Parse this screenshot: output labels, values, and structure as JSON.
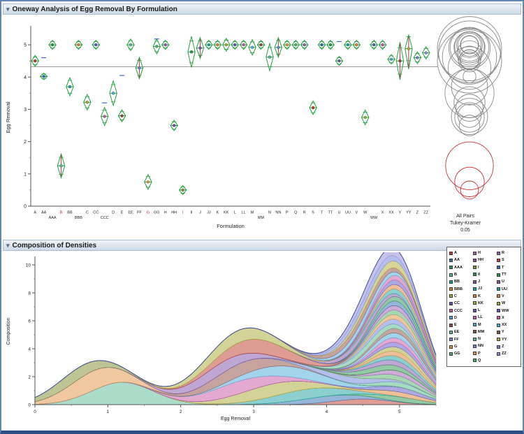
{
  "palette": [
    "#c0392b",
    "#2e6db4",
    "#27934b",
    "#7d4fa6",
    "#17a2a0",
    "#d98032",
    "#a8a832",
    "#5b52c7",
    "#c9539e",
    "#45a9d9",
    "#8c4a3f",
    "#52b788",
    "#6c7fd8",
    "#e0913f",
    "#4fae6b",
    "#9b59b6"
  ],
  "panels": {
    "oneway": {
      "header": "Oneway Analysis of Egg Removal By Formulation"
    },
    "density": {
      "header": "Composition of Densities"
    }
  },
  "chart_data": [
    {
      "type": "diamond-means",
      "title": "Oneway Analysis of Egg Removal By Formulation",
      "xlabel": "Formulation",
      "ylabel": "Egg Removal",
      "ylim": [
        0,
        5.5
      ],
      "yticks": [
        0,
        1,
        2,
        3,
        4,
        5
      ],
      "grand_mean": 4.32,
      "diamond_color": "#23a13f",
      "mean_line_color": "#9a9a9a",
      "comparison_circles": {
        "labels": [
          "All Pairs",
          "Tukey-Kramer",
          "0.05"
        ],
        "alpha": 0.05,
        "nonsig_color": "#8a8a8a",
        "sig_color": "#cc3333"
      },
      "groups": [
        {
          "name": "A",
          "mean": 4.5,
          "lo": 4.33,
          "hi": 4.67
        },
        {
          "name": "AA",
          "mean": 4.02,
          "lo": 3.92,
          "hi": 4.12
        },
        {
          "name": "AAA",
          "mean": 5.0,
          "lo": 4.86,
          "hi": 5.14,
          "r2": true
        },
        {
          "name": "B",
          "mean": 1.25,
          "lo": 0.88,
          "hi": 1.62,
          "sig": true,
          "vl": true,
          "color": "#57b894"
        },
        {
          "name": "BB",
          "mean": 3.7,
          "lo": 3.42,
          "hi": 3.98
        },
        {
          "name": "BBB",
          "mean": 5.0,
          "lo": 4.86,
          "hi": 5.14,
          "r2": true
        },
        {
          "name": "C",
          "mean": 3.22,
          "lo": 2.98,
          "hi": 3.46
        },
        {
          "name": "CC",
          "mean": 5.0,
          "lo": 4.86,
          "hi": 5.14
        },
        {
          "name": "CCC",
          "mean": 2.78,
          "lo": 2.5,
          "hi": 3.06,
          "r2": true
        },
        {
          "name": "D",
          "mean": 3.5,
          "lo": 3.12,
          "hi": 3.88
        },
        {
          "name": "E",
          "mean": 2.8,
          "lo": 2.62,
          "hi": 2.98
        },
        {
          "name": "EE",
          "mean": 5.0,
          "lo": 4.82,
          "hi": 5.18
        },
        {
          "name": "FF",
          "mean": 4.28,
          "lo": 3.95,
          "hi": 4.61,
          "vl": true
        },
        {
          "name": "G",
          "mean": 0.75,
          "lo": 0.52,
          "hi": 0.98,
          "sig": true,
          "color": "#e0913f"
        },
        {
          "name": "GG",
          "mean": 4.95,
          "lo": 4.72,
          "hi": 5.18
        },
        {
          "name": "H",
          "mean": 5.0,
          "lo": 4.86,
          "hi": 5.14
        },
        {
          "name": "HH",
          "mean": 2.5,
          "lo": 2.34,
          "hi": 2.66,
          "color": "#7d4fa6"
        },
        {
          "name": "I",
          "mean": 0.5,
          "lo": 0.36,
          "hi": 0.64,
          "sig": true,
          "color": "#808a2f"
        },
        {
          "name": "II",
          "mean": 4.78,
          "lo": 4.3,
          "hi": 5.26
        },
        {
          "name": "J",
          "mean": 4.9,
          "lo": 4.58,
          "hi": 5.22,
          "vl": true
        },
        {
          "name": "JJ",
          "mean": 5.0,
          "lo": 4.86,
          "hi": 5.14
        },
        {
          "name": "K",
          "mean": 5.0,
          "lo": 4.86,
          "hi": 5.14
        },
        {
          "name": "KK",
          "mean": 5.0,
          "lo": 4.8,
          "hi": 5.2
        },
        {
          "name": "L",
          "mean": 5.0,
          "lo": 4.86,
          "hi": 5.14
        },
        {
          "name": "LL",
          "mean": 5.0,
          "lo": 4.86,
          "hi": 5.14
        },
        {
          "name": "M",
          "mean": 4.92,
          "lo": 4.68,
          "hi": 5.16
        },
        {
          "name": "MM",
          "mean": 5.0,
          "lo": 4.86,
          "hi": 5.14,
          "r2": true
        },
        {
          "name": "N",
          "mean": 4.62,
          "lo": 4.2,
          "hi": 5.04
        },
        {
          "name": "NN",
          "mean": 4.92,
          "lo": 4.62,
          "hi": 5.22,
          "vl": true
        },
        {
          "name": "P",
          "mean": 5.0,
          "lo": 4.86,
          "hi": 5.14
        },
        {
          "name": "Q",
          "mean": 5.0,
          "lo": 4.86,
          "hi": 5.14
        },
        {
          "name": "R",
          "mean": 5.0,
          "lo": 4.86,
          "hi": 5.14
        },
        {
          "name": "S",
          "mean": 3.05,
          "lo": 2.84,
          "hi": 3.26
        },
        {
          "name": "T",
          "mean": 5.0,
          "lo": 4.86,
          "hi": 5.14
        },
        {
          "name": "TT",
          "mean": 5.0,
          "lo": 4.86,
          "hi": 5.14
        },
        {
          "name": "U",
          "mean": 4.5,
          "lo": 4.36,
          "hi": 4.64
        },
        {
          "name": "UU",
          "mean": 5.0,
          "lo": 4.86,
          "hi": 5.14
        },
        {
          "name": "V",
          "mean": 5.0,
          "lo": 4.86,
          "hi": 5.14
        },
        {
          "name": "W",
          "mean": 2.75,
          "lo": 2.52,
          "hi": 2.98
        },
        {
          "name": "WW",
          "mean": 5.0,
          "lo": 4.86,
          "hi": 5.14,
          "r2": true
        },
        {
          "name": "X",
          "mean": 5.0,
          "lo": 4.86,
          "hi": 5.14
        },
        {
          "name": "XX",
          "mean": 4.55,
          "lo": 4.4,
          "hi": 4.7
        },
        {
          "name": "Y",
          "mean": 4.5,
          "lo": 3.92,
          "hi": 5.08,
          "vl": true
        },
        {
          "name": "YY",
          "mean": 4.88,
          "lo": 4.25,
          "hi": 5.3,
          "vl": true,
          "color": "#b5a832"
        },
        {
          "name": "Z",
          "mean": 4.6,
          "lo": 4.42,
          "hi": 4.78
        },
        {
          "name": "ZZ",
          "mean": 4.75,
          "lo": 4.56,
          "hi": 4.94,
          "color": "#8f86d8"
        }
      ],
      "extra_marks": [
        [
          "E",
          4.05
        ],
        [
          "GG",
          5.18
        ],
        [
          "CCC",
          3.2
        ],
        [
          "U",
          5.1
        ],
        [
          "AA",
          4.6
        ]
      ]
    },
    {
      "type": "area",
      "subtype": "stacked-density",
      "title": "Composition of Densities",
      "xlabel": "Egg Removal",
      "ylabel": "Composition",
      "xlim": [
        0,
        5.5
      ],
      "ylim": [
        0,
        10.5
      ],
      "xticks": [
        0,
        1,
        2,
        3,
        4,
        5
      ],
      "yticks": [
        0,
        2,
        4,
        6,
        8,
        10
      ],
      "envelope_color": "#3d4f91",
      "series": [
        {
          "name": "A",
          "mean": 4.5,
          "sd": 0.4,
          "amp": 0.4
        },
        {
          "name": "AA",
          "mean": 4.0,
          "sd": 0.45,
          "amp": 0.42
        },
        {
          "name": "AAA",
          "mean": 5.0,
          "sd": 0.36,
          "amp": 0.33
        },
        {
          "name": "B",
          "mean": 1.2,
          "sd": 0.42,
          "amp": 1.6,
          "color": "#57b894"
        },
        {
          "name": "BB",
          "mean": 3.7,
          "sd": 0.5,
          "amp": 0.7
        },
        {
          "name": "BBB",
          "mean": 5.0,
          "sd": 0.36,
          "amp": 0.33
        },
        {
          "name": "C",
          "mean": 3.22,
          "sd": 0.5,
          "amp": 0.9
        },
        {
          "name": "CC",
          "mean": 5.0,
          "sd": 0.36,
          "amp": 0.33
        },
        {
          "name": "CCC",
          "mean": 2.78,
          "sd": 0.5,
          "amp": 0.9
        },
        {
          "name": "D",
          "mean": 3.5,
          "sd": 0.55,
          "amp": 0.75
        },
        {
          "name": "E",
          "mean": 2.8,
          "sd": 0.45,
          "amp": 0.9
        },
        {
          "name": "EE",
          "mean": 5.0,
          "sd": 0.36,
          "amp": 0.33
        },
        {
          "name": "FF",
          "mean": 4.28,
          "sd": 0.45,
          "amp": 0.42
        },
        {
          "name": "G",
          "mean": 0.8,
          "sd": 0.4,
          "amp": 1.4,
          "color": "#e0913f"
        },
        {
          "name": "GG",
          "mean": 4.95,
          "sd": 0.38,
          "amp": 0.35
        },
        {
          "name": "H",
          "mean": 5.0,
          "sd": 0.36,
          "amp": 0.33
        },
        {
          "name": "HH",
          "mean": 2.5,
          "sd": 0.45,
          "amp": 0.8,
          "color": "#7d4fa6"
        },
        {
          "name": "I",
          "mean": 0.55,
          "sd": 0.38,
          "amp": 0.85,
          "color": "#808a2f"
        },
        {
          "name": "II",
          "mean": 4.78,
          "sd": 0.42,
          "amp": 0.38
        },
        {
          "name": "J",
          "mean": 4.9,
          "sd": 0.4,
          "amp": 0.36
        },
        {
          "name": "JJ",
          "mean": 5.0,
          "sd": 0.36,
          "amp": 0.33
        },
        {
          "name": "K",
          "mean": 5.0,
          "sd": 0.36,
          "amp": 0.33
        },
        {
          "name": "KK",
          "mean": 5.0,
          "sd": 0.36,
          "amp": 0.33
        },
        {
          "name": "L",
          "mean": 5.0,
          "sd": 0.36,
          "amp": 0.33
        },
        {
          "name": "LL",
          "mean": 5.0,
          "sd": 0.36,
          "amp": 0.33
        },
        {
          "name": "M",
          "mean": 4.92,
          "sd": 0.38,
          "amp": 0.35
        },
        {
          "name": "MM",
          "mean": 5.0,
          "sd": 0.36,
          "amp": 0.33
        },
        {
          "name": "N",
          "mean": 4.62,
          "sd": 0.42,
          "amp": 0.4
        },
        {
          "name": "NN",
          "mean": 4.92,
          "sd": 0.4,
          "amp": 0.36
        },
        {
          "name": "P",
          "mean": 5.0,
          "sd": 0.36,
          "amp": 0.33
        },
        {
          "name": "Q",
          "mean": 5.0,
          "sd": 0.36,
          "amp": 0.33
        },
        {
          "name": "R",
          "mean": 5.0,
          "sd": 0.36,
          "amp": 0.33
        },
        {
          "name": "S",
          "mean": 3.05,
          "sd": 0.5,
          "amp": 1.0
        },
        {
          "name": "T",
          "mean": 5.0,
          "sd": 0.36,
          "amp": 0.33
        },
        {
          "name": "TT",
          "mean": 5.0,
          "sd": 0.36,
          "amp": 0.33
        },
        {
          "name": "U",
          "mean": 4.5,
          "sd": 0.38,
          "amp": 0.4
        },
        {
          "name": "UU",
          "mean": 5.0,
          "sd": 0.36,
          "amp": 0.33
        },
        {
          "name": "V",
          "mean": 5.0,
          "sd": 0.36,
          "amp": 0.33
        },
        {
          "name": "W",
          "mean": 2.75,
          "sd": 0.5,
          "amp": 0.9
        },
        {
          "name": "WW",
          "mean": 5.0,
          "sd": 0.36,
          "amp": 0.33
        },
        {
          "name": "X",
          "mean": 5.0,
          "sd": 0.36,
          "amp": 0.33
        },
        {
          "name": "XX",
          "mean": 4.55,
          "sd": 0.4,
          "amp": 0.4
        },
        {
          "name": "Y",
          "mean": 4.5,
          "sd": 0.45,
          "amp": 0.45
        },
        {
          "name": "YY",
          "mean": 4.88,
          "sd": 0.42,
          "amp": 0.5,
          "color": "#b5a832"
        },
        {
          "name": "Z",
          "mean": 4.6,
          "sd": 0.4,
          "amp": 0.5
        },
        {
          "name": "ZZ",
          "mean": 4.75,
          "sd": 0.42,
          "amp": 0.6,
          "color": "#8f86d8"
        }
      ]
    }
  ]
}
